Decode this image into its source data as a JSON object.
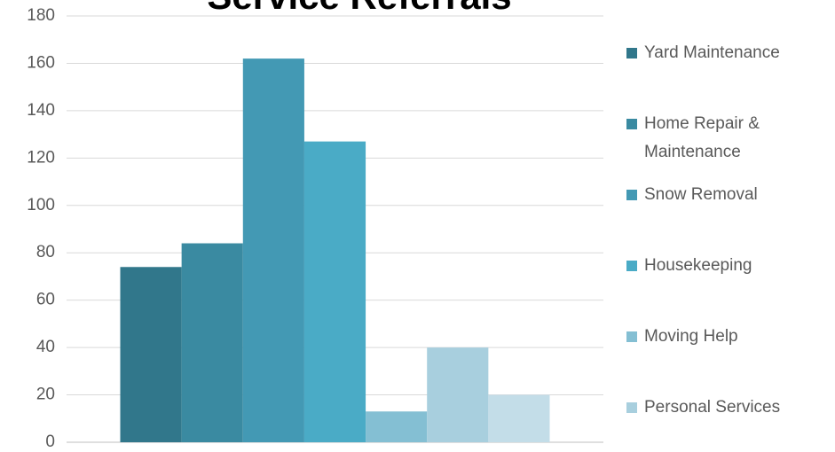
{
  "chart_data": {
    "type": "bar",
    "title": "Service Referrals",
    "categories": [
      null
    ],
    "series": [
      {
        "name": "Yard Maintenance",
        "color": "#31778b",
        "values": [
          74
        ]
      },
      {
        "name": "Home Repair & Maintenance",
        "color": "#3a8aa1",
        "values": [
          84
        ]
      },
      {
        "name": "Snow Removal",
        "color": "#4399b4",
        "values": [
          162
        ]
      },
      {
        "name": "Housekeeping",
        "color": "#4aabc6",
        "values": [
          127
        ]
      },
      {
        "name": "Moving Help",
        "color": "#84bfd3",
        "values": [
          13
        ]
      },
      {
        "name": "Personal Services",
        "color": "#a8cfde",
        "values": [
          40
        ]
      },
      {
        "name": null,
        "color": "#c3dde8",
        "values": [
          20
        ]
      }
    ],
    "ylim": [
      0,
      180
    ],
    "yticks": [
      0,
      20,
      40,
      60,
      80,
      100,
      120,
      140,
      160,
      180
    ],
    "grid": true,
    "legend": "right"
  }
}
